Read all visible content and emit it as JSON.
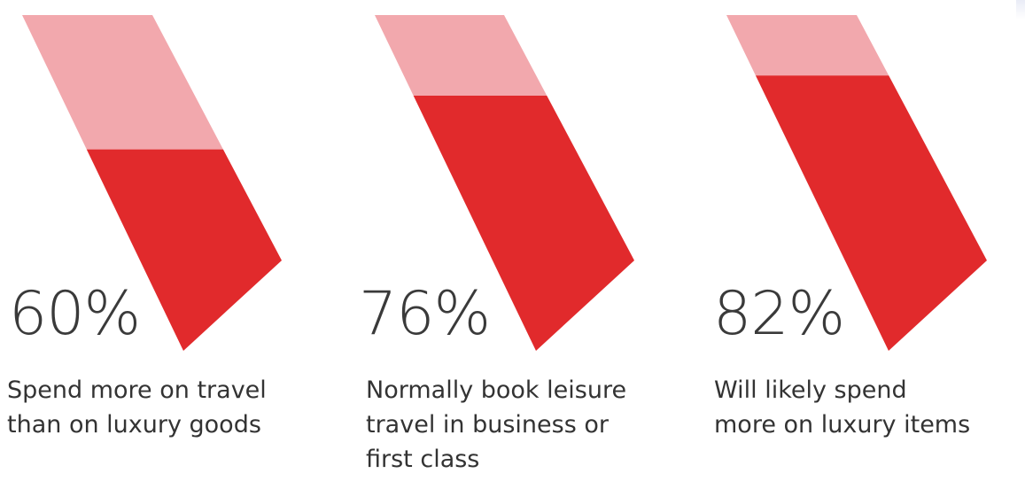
{
  "colors": {
    "light": "#f2a8ad",
    "dark": "#e12a2c",
    "text": "#333333"
  },
  "chart_data": {
    "type": "bar",
    "categories": [
      "Spend more on travel than on luxury goods",
      "Normally book leisure travel in business or first class",
      "Will likely spend more on luxury items"
    ],
    "values": [
      60,
      76,
      82
    ],
    "value_labels": [
      "60%",
      "76%",
      "82%"
    ],
    "ylim": [
      0,
      100
    ],
    "unit": "%"
  },
  "items": [
    {
      "label": "60%",
      "caption_lines": [
        "Spend more on travel",
        "than on luxury goods"
      ]
    },
    {
      "label": "76%",
      "caption_lines": [
        "Normally book leisure",
        "travel in business or",
        "first class"
      ]
    },
    {
      "label": "82%",
      "caption_lines": [
        "Will likely spend",
        "more on luxury items"
      ]
    }
  ]
}
